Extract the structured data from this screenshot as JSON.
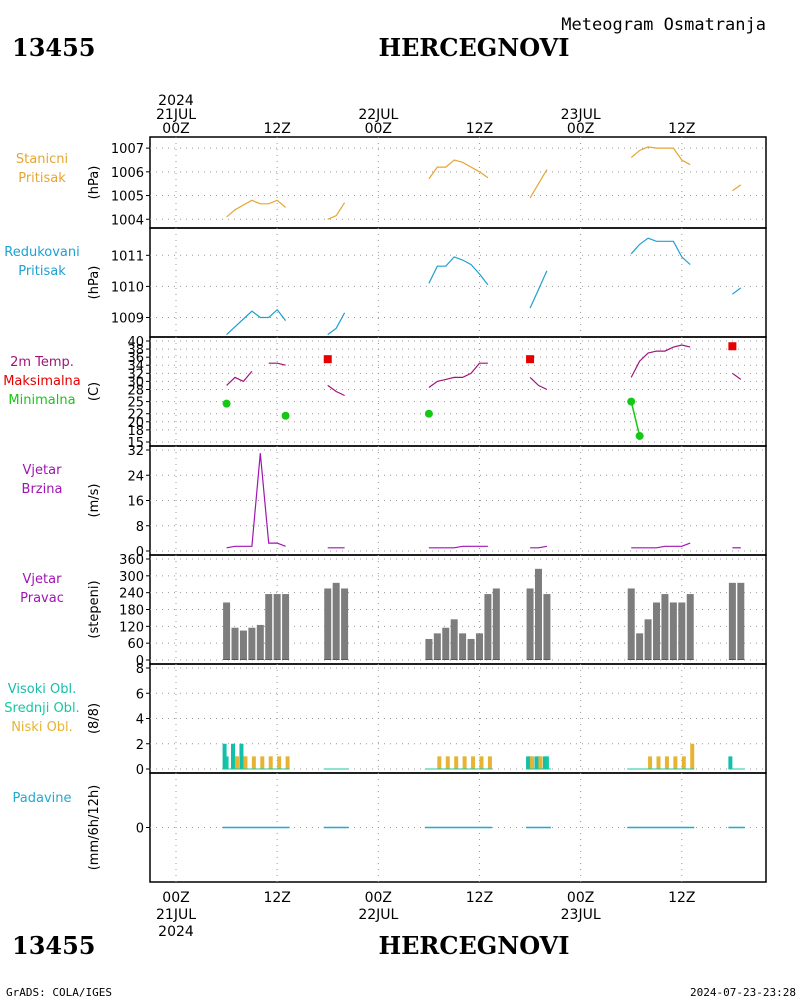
{
  "header": {
    "station_id": "13455",
    "station_name": "HERCEGNOVI",
    "subtitle": "Meteogram Osmatranja",
    "footer_left": "GrADS: COLA/IGES",
    "footer_right": "2024-07-23-23:28"
  },
  "time_axis": {
    "top_labels": [
      {
        "hour": 0,
        "lines": [
          "2024",
          "21JUL",
          "00Z"
        ]
      },
      {
        "hour": 12,
        "lines": [
          "12Z"
        ]
      },
      {
        "hour": 24,
        "lines": [
          "22JUL",
          "00Z"
        ]
      },
      {
        "hour": 36,
        "lines": [
          "12Z"
        ]
      },
      {
        "hour": 48,
        "lines": [
          "23JUL",
          "00Z"
        ]
      },
      {
        "hour": 60,
        "lines": [
          "12Z"
        ]
      }
    ],
    "bottom_labels": [
      {
        "hour": 0,
        "lines": [
          "00Z",
          "21JUL",
          "2024"
        ]
      },
      {
        "hour": 12,
        "lines": [
          "12Z"
        ]
      },
      {
        "hour": 24,
        "lines": [
          "00Z",
          "22JUL"
        ]
      },
      {
        "hour": 36,
        "lines": [
          "12Z"
        ]
      },
      {
        "hour": 48,
        "lines": [
          "00Z",
          "23JUL"
        ]
      },
      {
        "hour": 60,
        "lines": [
          "12Z"
        ]
      }
    ]
  },
  "colors": {
    "station_pressure": "#e6a532",
    "reduced_pressure": "#1ea0d2",
    "temperature": "#a0147a",
    "max_temp": "#e60000",
    "min_temp": "#14c814",
    "wind": "#a014b4",
    "wind_dir_bar": "#7d7d7d",
    "cloud_high": "#14beaa",
    "cloud_mid": "#14c8a0",
    "cloud_low": "#e6b432",
    "precip": "#1eaad2",
    "grid": "#999999"
  },
  "chart_data": [
    {
      "type": "line",
      "panel": "station_pressure",
      "labels": [
        "Stanicni",
        "Pritisak"
      ],
      "ylabel": "(hPa)",
      "ylim": [
        1003.8,
        1007.3
      ],
      "yticks": [
        1004,
        1005,
        1006,
        1007
      ],
      "segments": [
        [
          [
            6,
            1004.1
          ],
          [
            7,
            1004.4
          ],
          [
            8,
            1004.6
          ],
          [
            9,
            1004.8
          ],
          [
            10,
            1004.65
          ],
          [
            11,
            1004.65
          ],
          [
            12,
            1004.8
          ],
          [
            13,
            1004.5
          ]
        ],
        [
          [
            18,
            1004.0
          ],
          [
            19,
            1004.15
          ],
          [
            20,
            1004.7
          ]
        ],
        [
          [
            30,
            1005.7
          ],
          [
            31,
            1006.2
          ],
          [
            32,
            1006.2
          ],
          [
            33,
            1006.5
          ],
          [
            34,
            1006.4
          ],
          [
            35,
            1006.2
          ],
          [
            36,
            1006.0
          ],
          [
            37,
            1005.75
          ]
        ],
        [
          [
            42,
            1004.9
          ],
          [
            43,
            1005.5
          ],
          [
            44,
            1006.1
          ]
        ],
        [
          [
            54,
            1006.6
          ],
          [
            55,
            1006.9
          ],
          [
            56,
            1007.05
          ],
          [
            57,
            1007.0
          ],
          [
            58,
            1007.0
          ],
          [
            59,
            1007.0
          ],
          [
            60,
            1006.5
          ],
          [
            61,
            1006.3
          ]
        ],
        [
          [
            66,
            1005.2
          ],
          [
            67,
            1005.45
          ]
        ]
      ]
    },
    {
      "type": "line",
      "panel": "reduced_pressure",
      "labels": [
        "Redukovani",
        "Pritisak"
      ],
      "ylabel": "(hPa)",
      "ylim": [
        1008.5,
        1011.75
      ],
      "yticks": [
        1009,
        1010,
        1011
      ],
      "segments": [
        [
          [
            6,
            1008.45
          ],
          [
            7,
            1008.7
          ],
          [
            8,
            1008.95
          ],
          [
            9,
            1009.2
          ],
          [
            10,
            1009.0
          ],
          [
            11,
            1009.0
          ],
          [
            12,
            1009.25
          ],
          [
            13,
            1008.9
          ]
        ],
        [
          [
            18,
            1008.45
          ],
          [
            19,
            1008.65
          ],
          [
            20,
            1009.15
          ]
        ],
        [
          [
            30,
            1010.1
          ],
          [
            31,
            1010.65
          ],
          [
            32,
            1010.65
          ],
          [
            33,
            1010.95
          ],
          [
            34,
            1010.85
          ],
          [
            35,
            1010.7
          ],
          [
            36,
            1010.4
          ],
          [
            37,
            1010.05
          ]
        ],
        [
          [
            42,
            1009.3
          ],
          [
            43,
            1009.9
          ],
          [
            44,
            1010.5
          ]
        ],
        [
          [
            54,
            1011.05
          ],
          [
            55,
            1011.35
          ],
          [
            56,
            1011.55
          ],
          [
            57,
            1011.45
          ],
          [
            58,
            1011.45
          ],
          [
            59,
            1011.45
          ],
          [
            60,
            1010.95
          ],
          [
            61,
            1010.7
          ]
        ],
        [
          [
            66,
            1009.75
          ],
          [
            67,
            1009.95
          ]
        ]
      ]
    },
    {
      "type": "line",
      "panel": "temperature",
      "labels": [
        "2m Temp.",
        "Maksimalna",
        "Minimalna"
      ],
      "ylabel": "(C)",
      "ylim": [
        15,
        40
      ],
      "yticks": [
        15,
        18,
        20,
        22,
        25,
        28,
        30,
        32,
        34,
        36,
        38,
        40
      ],
      "segments": [
        [
          [
            6,
            29
          ],
          [
            7,
            31
          ],
          [
            8,
            30
          ],
          [
            9,
            32.5
          ]
        ],
        [
          [
            11,
            34.5
          ],
          [
            12,
            34.5
          ],
          [
            13,
            34
          ]
        ],
        [
          [
            18,
            29
          ],
          [
            19,
            27.5
          ],
          [
            20,
            26.5
          ]
        ],
        [
          [
            30,
            28.5
          ],
          [
            31,
            30
          ],
          [
            32,
            30.5
          ],
          [
            33,
            31
          ],
          [
            34,
            31
          ],
          [
            35,
            32
          ],
          [
            36,
            34.5
          ],
          [
            37,
            34.5
          ]
        ],
        [
          [
            42,
            31
          ],
          [
            43,
            29
          ],
          [
            44,
            28
          ]
        ],
        [
          [
            54,
            31
          ],
          [
            55,
            35
          ],
          [
            56,
            37
          ],
          [
            57,
            37.5
          ],
          [
            58,
            37.5
          ],
          [
            59,
            38.5
          ],
          [
            60,
            39
          ],
          [
            61,
            38.5
          ]
        ],
        [
          [
            66,
            32
          ],
          [
            67,
            30.5
          ]
        ]
      ],
      "max_points": [
        [
          18,
          35.5
        ],
        [
          42,
          35.5
        ],
        [
          66,
          38.7
        ]
      ],
      "min_points": [
        [
          6,
          24.5
        ],
        [
          13,
          21.5
        ],
        [
          30,
          22
        ],
        [
          54,
          25
        ],
        [
          55,
          16.5
        ]
      ]
    },
    {
      "type": "line",
      "panel": "wind_speed",
      "labels": [
        "Vjetar",
        "Brzina"
      ],
      "ylabel": "(m/s)",
      "ylim": [
        0,
        32
      ],
      "yticks": [
        0,
        8,
        16,
        24,
        32
      ],
      "segments": [
        [
          [
            6,
            1
          ],
          [
            7,
            1.5
          ],
          [
            8,
            1.5
          ],
          [
            9,
            1.5
          ],
          [
            10,
            31
          ],
          [
            11,
            2.5
          ],
          [
            12,
            2.5
          ],
          [
            13,
            1.5
          ]
        ],
        [
          [
            18,
            1
          ],
          [
            19,
            1
          ],
          [
            20,
            1
          ]
        ],
        [
          [
            30,
            1
          ],
          [
            31,
            1
          ],
          [
            32,
            1
          ],
          [
            33,
            1
          ],
          [
            34,
            1.5
          ],
          [
            35,
            1.5
          ],
          [
            36,
            1.5
          ],
          [
            37,
            1.5
          ]
        ],
        [
          [
            42,
            1
          ],
          [
            43,
            1
          ],
          [
            44,
            1.5
          ]
        ],
        [
          [
            54,
            1
          ],
          [
            55,
            1
          ],
          [
            56,
            1
          ],
          [
            57,
            1
          ],
          [
            58,
            1.5
          ],
          [
            59,
            1.5
          ],
          [
            60,
            1.5
          ],
          [
            61,
            2.5
          ]
        ],
        [
          [
            66,
            1
          ],
          [
            67,
            1
          ]
        ]
      ]
    },
    {
      "type": "bar",
      "panel": "wind_direction",
      "labels": [
        "Vjetar",
        "Pravac"
      ],
      "ylabel": "(stepeni)",
      "ylim": [
        0,
        360
      ],
      "yticks": [
        0,
        60,
        120,
        180,
        240,
        300,
        360
      ],
      "bars": [
        [
          6,
          205
        ],
        [
          7,
          115
        ],
        [
          8,
          105
        ],
        [
          9,
          115
        ],
        [
          10,
          125
        ],
        [
          11,
          235
        ],
        [
          12,
          235
        ],
        [
          13,
          235
        ],
        [
          18,
          255
        ],
        [
          19,
          275
        ],
        [
          20,
          255
        ],
        [
          30,
          75
        ],
        [
          31,
          95
        ],
        [
          32,
          115
        ],
        [
          33,
          145
        ],
        [
          34,
          95
        ],
        [
          35,
          75
        ],
        [
          36,
          95
        ],
        [
          37,
          235
        ],
        [
          38,
          255
        ],
        [
          42,
          255
        ],
        [
          43,
          325
        ],
        [
          44,
          235
        ],
        [
          54,
          255
        ],
        [
          55,
          95
        ],
        [
          56,
          145
        ],
        [
          57,
          205
        ],
        [
          58,
          235
        ],
        [
          59,
          205
        ],
        [
          60,
          205
        ],
        [
          61,
          235
        ],
        [
          66,
          275
        ],
        [
          67,
          275
        ]
      ]
    },
    {
      "type": "bar",
      "panel": "clouds",
      "labels": [
        "Visoki Obl.",
        "Srednji Obl.",
        "Niski Obl."
      ],
      "ylabel": "(8/8)",
      "ylim": [
        0,
        8
      ],
      "yticks": [
        0,
        2,
        4,
        6,
        8
      ],
      "high": [
        [
          6,
          2
        ],
        [
          7,
          2
        ],
        [
          8,
          2
        ],
        [
          42,
          1
        ],
        [
          43,
          1
        ],
        [
          44,
          1
        ],
        [
          66,
          1
        ]
      ],
      "mid": [
        [
          6,
          1
        ],
        [
          7,
          1
        ],
        [
          8,
          1
        ],
        [
          42,
          1
        ],
        [
          43,
          1
        ],
        [
          44,
          1
        ]
      ],
      "low": [
        [
          7,
          1
        ],
        [
          8,
          1
        ],
        [
          9,
          1
        ],
        [
          10,
          1
        ],
        [
          11,
          1
        ],
        [
          12,
          1
        ],
        [
          13,
          1
        ],
        [
          31,
          1
        ],
        [
          32,
          1
        ],
        [
          33,
          1
        ],
        [
          34,
          1
        ],
        [
          35,
          1
        ],
        [
          36,
          1
        ],
        [
          37,
          1
        ],
        [
          42,
          1
        ],
        [
          43,
          1
        ],
        [
          56,
          1
        ],
        [
          57,
          1
        ],
        [
          58,
          1
        ],
        [
          59,
          1
        ],
        [
          60,
          1
        ],
        [
          61,
          2
        ]
      ]
    },
    {
      "type": "bar",
      "panel": "precipitation",
      "labels": [
        "Padavine"
      ],
      "ylabel": "(mm/6h/12h)",
      "ylim": [
        -5,
        5
      ],
      "yticks": [
        0
      ],
      "nonzero": []
    }
  ]
}
